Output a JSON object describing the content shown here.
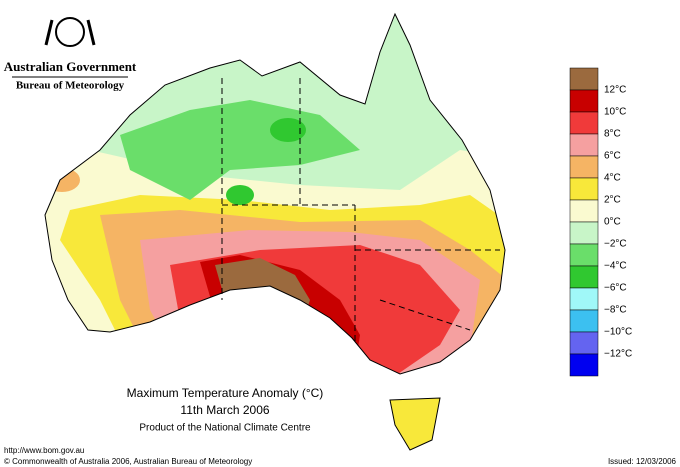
{
  "header": {
    "agency": "Australian Government",
    "bureau": "Bureau of Meteorology"
  },
  "legend": {
    "colors": [
      "#9b6a3e",
      "#c80000",
      "#f03a3a",
      "#f5a0a0",
      "#f5b464",
      "#f8e83a",
      "#fafad0",
      "#c8f5c8",
      "#6ade6a",
      "#30c830",
      "#a0f8f8",
      "#3cc0f0",
      "#6464f0",
      "#0000f0"
    ],
    "labels": [
      "12°C",
      "10°C",
      "8°C",
      "6°C",
      "4°C",
      "2°C",
      "0°C",
      "−2°C",
      "−4°C",
      "−6°C",
      "−8°C",
      "−10°C",
      "−12°C"
    ]
  },
  "title": {
    "line1": "Maximum Temperature Anomaly (°C)",
    "line2": "11th March 2006",
    "line3": "Product of the National Climate Centre"
  },
  "footer": {
    "url": "http://www.bom.gov.au",
    "copyright": "© Commonwealth of Australia 2006, Australian Bureau of Meteorology",
    "issued": "Issued: 12/03/2006"
  }
}
